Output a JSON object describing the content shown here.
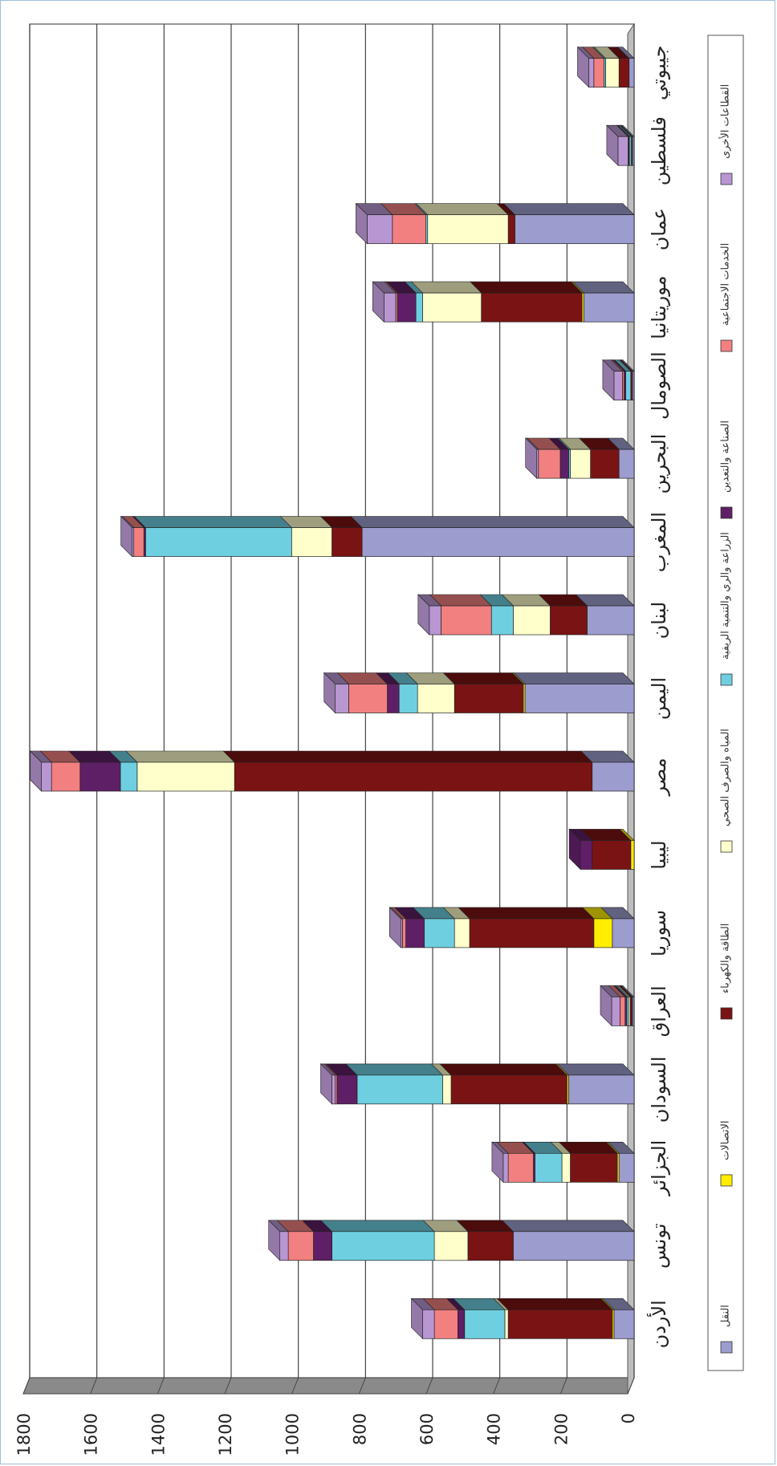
{
  "chart_data": {
    "type": "bar",
    "orientation": "rotated-90-stacked-3d",
    "title": "",
    "xlabel": "",
    "ylabel": "",
    "ylim": [
      0,
      1800
    ],
    "ticks": [
      "0",
      "200",
      "400",
      "600",
      "800",
      "1000",
      "1200",
      "1400",
      "1600",
      "1800"
    ],
    "grid": true,
    "legend_position": "right",
    "categories": [
      "الأردن",
      "تونس",
      "الجزائر",
      "السودان",
      "العراق",
      "سوريا",
      "ليبيا",
      "مصر",
      "اليمن",
      "لبنان",
      "المغرب",
      "البحرين",
      "الصومال",
      "موريتانيا",
      "عمان",
      "فلسطين",
      "جيبوتي"
    ],
    "series": [
      {
        "name": "النقل",
        "color": "#9c9ccf",
        "values": [
          60,
          360,
          45,
          195,
          5,
          65,
          0,
          125,
          325,
          140,
          810,
          45,
          5,
          150,
          355,
          5,
          15
        ]
      },
      {
        "name": "الاتصالات",
        "color": "#ffee00",
        "values": [
          5,
          0,
          5,
          5,
          2,
          55,
          10,
          0,
          5,
          0,
          0,
          0,
          0,
          5,
          0,
          0,
          0
        ]
      },
      {
        "name": "الطاقة والكهرباء",
        "color": "#7a1414",
        "values": [
          310,
          135,
          140,
          345,
          5,
          370,
          115,
          1065,
          205,
          110,
          90,
          85,
          5,
          300,
          20,
          2,
          30
        ]
      },
      {
        "name": "المياه والصرف الصحي",
        "color": "#ffffcc",
        "values": [
          10,
          100,
          25,
          25,
          5,
          45,
          0,
          290,
          110,
          110,
          120,
          60,
          0,
          175,
          240,
          2,
          40
        ]
      },
      {
        "name": "الزراعة والري والتنمية الريفية",
        "color": "#6ecfe0",
        "values": [
          120,
          305,
          80,
          255,
          5,
          90,
          0,
          50,
          55,
          65,
          435,
          5,
          15,
          20,
          5,
          5,
          5
        ]
      },
      {
        "name": "الصناعة والتعدين",
        "color": "#5f1f66",
        "values": [
          20,
          55,
          5,
          60,
          5,
          55,
          35,
          120,
          35,
          0,
          5,
          25,
          5,
          55,
          0,
          2,
          0
        ]
      },
      {
        "name": "الخدمات الاجتماعية",
        "color": "#f28080",
        "values": [
          70,
          75,
          75,
          5,
          15,
          10,
          0,
          85,
          115,
          150,
          30,
          65,
          5,
          5,
          100,
          2,
          30
        ]
      },
      {
        "name": "القطاعات الأخرى",
        "color": "#b896d2",
        "values": [
          35,
          25,
          15,
          10,
          25,
          5,
          0,
          30,
          40,
          35,
          5,
          5,
          25,
          35,
          75,
          30,
          15
        ]
      }
    ]
  }
}
